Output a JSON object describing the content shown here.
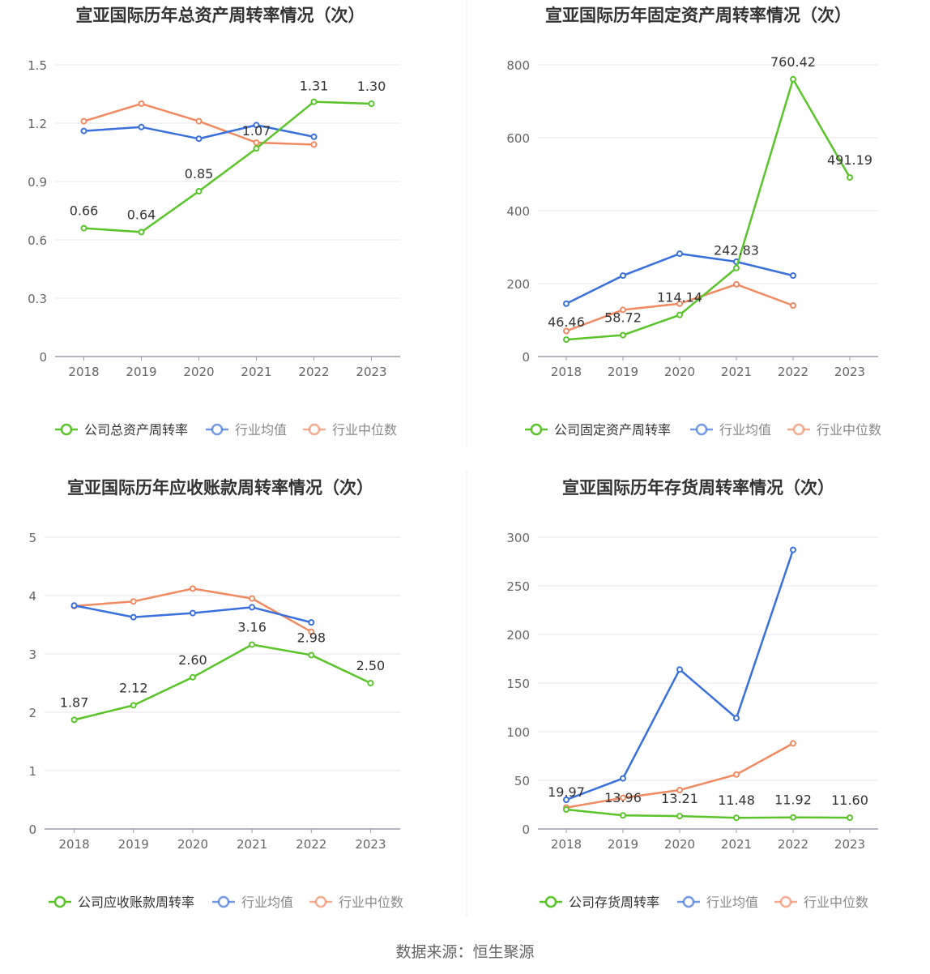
{
  "colors": {
    "company": "#5ac42a",
    "avg": "#3a70dc",
    "median": "#f08a62",
    "grid": "#e4e6ec",
    "axis": "#9a9caa",
    "tick_text": "#666666",
    "title": "#333333"
  },
  "source": "数据来源：恒生聚源",
  "chart_data": [
    {
      "type": "line",
      "title": "宣亚国际历年总资产周转率情况（次）",
      "categories": [
        "2018",
        "2019",
        "2020",
        "2021",
        "2022",
        "2023"
      ],
      "yticks": [
        "1.5",
        "1.2",
        "0.9",
        "0.6",
        "0.3",
        "0"
      ],
      "ylim": [
        0,
        1.5
      ],
      "series": [
        {
          "key": "company",
          "name": "公司总资产周转率",
          "values": [
            0.66,
            0.64,
            0.85,
            1.07,
            1.31,
            1.3
          ],
          "labels": [
            "0.66",
            "0.64",
            "0.85",
            "1.07",
            "1.31",
            "1.30"
          ]
        },
        {
          "key": "avg",
          "name": "行业均值",
          "values": [
            1.16,
            1.18,
            1.12,
            1.19,
            1.13,
            null
          ]
        },
        {
          "key": "median",
          "name": "行业中位数",
          "values": [
            1.21,
            1.3,
            1.21,
            1.1,
            1.09,
            null
          ]
        }
      ]
    },
    {
      "type": "line",
      "title": "宣亚国际历年固定资产周转率情况（次）",
      "categories": [
        "2018",
        "2019",
        "2020",
        "2021",
        "2022",
        "2023"
      ],
      "yticks": [
        "800",
        "600",
        "400",
        "200",
        "0"
      ],
      "ylim": [
        0,
        800
      ],
      "series": [
        {
          "key": "company",
          "name": "公司固定资产周转率",
          "values": [
            46.46,
            58.72,
            114.14,
            242.83,
            760.42,
            491.19
          ],
          "labels": [
            "46.46",
            "58.72",
            "114.14",
            "242.83",
            "760.42",
            "491.19"
          ]
        },
        {
          "key": "avg",
          "name": "行业均值",
          "values": [
            145,
            222,
            282,
            260,
            222,
            null
          ]
        },
        {
          "key": "median",
          "name": "行业中位数",
          "values": [
            70,
            128,
            145,
            198,
            140,
            null
          ]
        }
      ]
    },
    {
      "type": "line",
      "title": "宣亚国际历年应收账款周转率情况（次）",
      "categories": [
        "2018",
        "2019",
        "2020",
        "2021",
        "2022",
        "2023"
      ],
      "yticks": [
        "5",
        "4",
        "3",
        "2",
        "1",
        "0"
      ],
      "ylim": [
        0,
        5
      ],
      "series": [
        {
          "key": "company",
          "name": "公司应收账款周转率",
          "values": [
            1.87,
            2.12,
            2.6,
            3.16,
            2.98,
            2.5
          ],
          "labels": [
            "1.87",
            "2.12",
            "2.60",
            "3.16",
            "2.98",
            "2.50"
          ]
        },
        {
          "key": "avg",
          "name": "行业均值",
          "values": [
            3.83,
            3.63,
            3.7,
            3.8,
            3.54,
            null
          ]
        },
        {
          "key": "median",
          "name": "行业中位数",
          "values": [
            3.82,
            3.9,
            4.12,
            3.95,
            3.38,
            null
          ]
        }
      ]
    },
    {
      "type": "line",
      "title": "宣亚国际历年存货周转率情况（次）",
      "categories": [
        "2018",
        "2019",
        "2020",
        "2021",
        "2022",
        "2023"
      ],
      "yticks": [
        "300",
        "250",
        "200",
        "150",
        "100",
        "50",
        "0"
      ],
      "ylim": [
        0,
        300
      ],
      "series": [
        {
          "key": "company",
          "name": "公司存货周转率",
          "values": [
            19.97,
            13.96,
            13.21,
            11.48,
            11.92,
            11.6
          ],
          "labels": [
            "19.97",
            "13.96",
            "13.21",
            "11.48",
            "11.92",
            "11.60"
          ]
        },
        {
          "key": "avg",
          "name": "行业均值",
          "values": [
            30,
            52,
            164,
            114,
            287,
            null
          ]
        },
        {
          "key": "median",
          "name": "行业中位数",
          "values": [
            22,
            32,
            40,
            56,
            88,
            null
          ]
        }
      ]
    }
  ]
}
